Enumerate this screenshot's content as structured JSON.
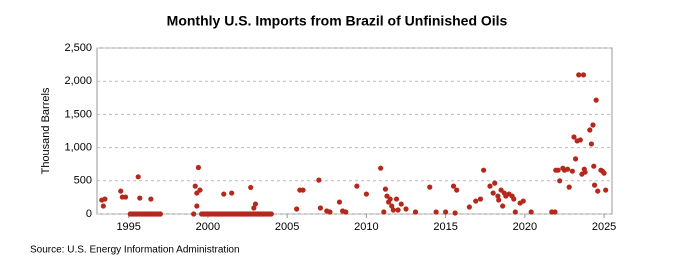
{
  "chart_data": {
    "type": "scatter",
    "title": "Monthly U.S. Imports from Brazil of Unfinished Oils",
    "y_label": "Thousand Barrels",
    "source": "Source: U.S. Energy Information Administration",
    "color": "#b5281c",
    "grid": true,
    "xlim": [
      1993,
      2025.5
    ],
    "xticks": [
      1995,
      2000,
      2005,
      2010,
      2015,
      2020,
      2025
    ],
    "ylim": [
      0,
      2500
    ],
    "yticks": [
      {
        "value": 0,
        "label": "0"
      },
      {
        "value": 500,
        "label": "500"
      },
      {
        "value": 1000,
        "label": "1,000"
      },
      {
        "value": 1500,
        "label": "1,500"
      },
      {
        "value": 2000,
        "label": "2,000"
      },
      {
        "value": 2500,
        "label": "2,500"
      }
    ],
    "x": [
      1993.3,
      1993.5,
      1993.4,
      1994.5,
      1994.6,
      1994.8,
      1995.1,
      1995.2,
      1995.3,
      1995.4,
      1995.5,
      1995.6,
      1995.7,
      1995.8,
      1995.9,
      1996.0,
      1996.1,
      1996.2,
      1996.3,
      1996.4,
      1996.5,
      1996.6,
      1996.7,
      1996.8,
      1996.9,
      1997.0,
      1995.6,
      1995.7,
      1996.4,
      1999.1,
      1999.2,
      1999.3,
      1999.4,
      1999.5,
      1999.3,
      1999.6,
      1999.7,
      1999.8,
      1999.9,
      2000.0,
      2000.1,
      2000.2,
      2000.3,
      2000.4,
      2000.5,
      2000.6,
      2000.7,
      2000.8,
      2000.9,
      2001.0,
      2001.1,
      2001.2,
      2001.3,
      2001.4,
      2001.5,
      2001.6,
      2001.7,
      2001.8,
      2001.9,
      2002.0,
      2002.1,
      2002.2,
      2002.3,
      2002.4,
      2002.5,
      2002.6,
      2002.7,
      2002.8,
      2002.9,
      2003.0,
      2003.1,
      2003.2,
      2003.3,
      2003.4,
      2003.5,
      2003.6,
      2003.7,
      2003.8,
      2003.9,
      2004.0,
      2001.0,
      2001.5,
      2002.7,
      2002.9,
      2003.0,
      2005.6,
      2005.8,
      2006.0,
      2007.0,
      2007.1,
      2007.5,
      2007.7,
      2008.3,
      2008.5,
      2008.7,
      2009.4,
      2010.0,
      2010.9,
      2011.2,
      2011.3,
      2011.4,
      2011.5,
      2011.6,
      2011.7,
      2011.9,
      2012.0,
      2012.2,
      2012.5,
      2011.1,
      2013.1,
      2014.0,
      2014.4,
      2015.0,
      2015.5,
      2015.7,
      2015.6,
      2016.5,
      2016.9,
      2017.2,
      2017.4,
      2017.8,
      2018.0,
      2018.1,
      2018.3,
      2018.35,
      2018.5,
      2018.6,
      2018.7,
      2018.8,
      2019.0,
      2019.2,
      2019.3,
      2019.4,
      2019.7,
      2019.9,
      2020.4,
      2021.7,
      2021.9,
      2021.95,
      2022.1,
      2022.2,
      2022.4,
      2022.5,
      2022.7,
      2022.8,
      2023.0,
      2023.1,
      2023.2,
      2023.3,
      2023.5,
      2023.4,
      2023.7,
      2023.6,
      2023.75,
      2023.8,
      2024.1,
      2024.3,
      2024.2,
      2024.35,
      2024.5,
      2024.4,
      2024.6,
      2024.8,
      2024.9,
      2025.0,
      2025.1
    ],
    "values": [
      210,
      225,
      120,
      345,
      255,
      255,
      0,
      0,
      0,
      0,
      0,
      0,
      0,
      0,
      0,
      0,
      0,
      0,
      0,
      0,
      0,
      0,
      0,
      0,
      0,
      0,
      560,
      240,
      225,
      0,
      420,
      315,
      700,
      360,
      120,
      0,
      0,
      0,
      0,
      0,
      0,
      0,
      0,
      0,
      0,
      0,
      0,
      0,
      0,
      0,
      0,
      0,
      0,
      0,
      0,
      0,
      0,
      0,
      0,
      0,
      0,
      0,
      0,
      0,
      0,
      0,
      0,
      0,
      0,
      0,
      0,
      0,
      0,
      0,
      0,
      0,
      0,
      0,
      0,
      0,
      300,
      315,
      400,
      90,
      150,
      75,
      360,
      360,
      510,
      90,
      45,
      30,
      180,
      45,
      30,
      420,
      300,
      690,
      375,
      270,
      180,
      225,
      120,
      60,
      225,
      60,
      150,
      75,
      30,
      30,
      405,
      30,
      30,
      420,
      360,
      15,
      105,
      195,
      225,
      660,
      420,
      315,
      465,
      270,
      210,
      360,
      120,
      315,
      270,
      300,
      270,
      225,
      30,
      165,
      195,
      30,
      30,
      30,
      660,
      660,
      500,
      690,
      660,
      675,
      405,
      645,
      1160,
      830,
      1100,
      1115,
      2095,
      2095,
      600,
      675,
      630,
      1265,
      1340,
      1055,
      720,
      1715,
      435,
      345,
      660,
      645,
      615,
      360
    ]
  }
}
